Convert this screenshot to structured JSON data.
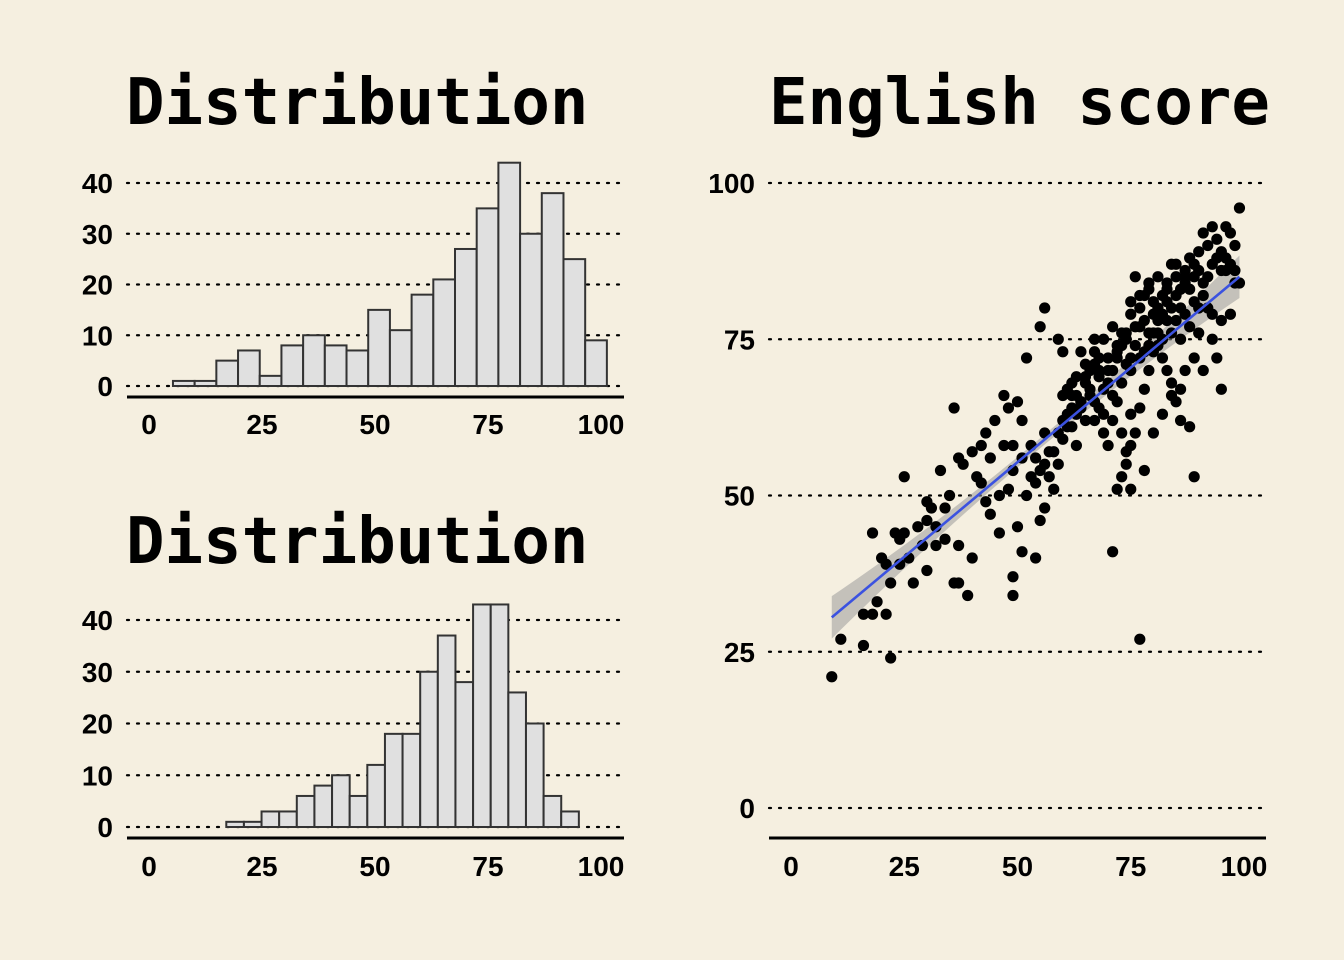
{
  "chart_data": [
    {
      "type": "bar",
      "title": "Distribution",
      "x_ticks": [
        0,
        25,
        50,
        75,
        100
      ],
      "y_ticks": [
        0,
        10,
        20,
        30,
        40
      ],
      "xlim": [
        -5,
        105
      ],
      "ylim": [
        0,
        44
      ],
      "grid": "horizontal dotted",
      "bin_width": 4.8,
      "bin_starts": [
        5.3,
        10.1,
        14.9,
        19.7,
        24.5,
        29.3,
        34.1,
        38.9,
        43.7,
        48.5,
        53.3,
        58.1,
        62.9,
        67.7,
        72.5,
        77.3,
        82.1,
        86.9,
        91.7,
        96.5
      ],
      "values": [
        1,
        1,
        5,
        7,
        2,
        8,
        10,
        8,
        7,
        15,
        11,
        18,
        21,
        27,
        35,
        44,
        30,
        38,
        25,
        9
      ]
    },
    {
      "type": "bar",
      "title": "Distribution",
      "x_ticks": [
        0,
        25,
        50,
        75,
        100
      ],
      "y_ticks": [
        0,
        10,
        20,
        30,
        40
      ],
      "xlim": [
        -5,
        105
      ],
      "ylim": [
        0,
        43
      ],
      "grid": "horizontal dotted",
      "bin_width": 3.9,
      "bin_starts": [
        17.1,
        21.0,
        24.9,
        28.8,
        32.7,
        36.6,
        40.5,
        44.4,
        48.3,
        52.2,
        56.1,
        60.0,
        63.9,
        67.8,
        71.7,
        75.6,
        79.5,
        83.4,
        87.3,
        91.2
      ],
      "values": [
        1,
        1,
        3,
        3,
        6,
        8,
        10,
        6,
        12,
        18,
        18,
        30,
        37,
        28,
        43,
        43,
        26,
        20,
        6,
        3
      ]
    },
    {
      "type": "scatter",
      "title": "English score",
      "x_ticks": [
        0,
        25,
        50,
        75,
        100
      ],
      "y_ticks": [
        0,
        25,
        50,
        75,
        100
      ],
      "xlim": [
        -5,
        105
      ],
      "ylim": [
        -5,
        100
      ],
      "grid": "horizontal dotted",
      "fit_line": {
        "x": [
          9,
          99
        ],
        "y": [
          30.5,
          85
        ]
      },
      "points": [
        [
          9,
          21
        ],
        [
          11,
          27
        ],
        [
          16,
          26
        ],
        [
          22,
          24
        ],
        [
          16,
          31
        ],
        [
          18,
          31
        ],
        [
          21,
          31
        ],
        [
          19,
          33
        ],
        [
          22,
          36
        ],
        [
          21,
          39
        ],
        [
          20,
          40
        ],
        [
          24,
          39
        ],
        [
          24,
          43
        ],
        [
          18,
          44
        ],
        [
          25,
          44
        ],
        [
          25,
          53
        ],
        [
          30,
          38
        ],
        [
          32,
          42
        ],
        [
          34,
          43
        ],
        [
          36,
          36
        ],
        [
          37,
          36
        ],
        [
          39,
          34
        ],
        [
          37,
          42
        ],
        [
          40,
          40
        ],
        [
          30,
          46
        ],
        [
          32,
          45
        ],
        [
          34,
          48
        ],
        [
          35,
          50
        ],
        [
          33,
          54
        ],
        [
          37,
          56
        ],
        [
          38,
          55
        ],
        [
          40,
          57
        ],
        [
          42,
          58
        ],
        [
          43,
          60
        ],
        [
          45,
          62
        ],
        [
          48,
          64
        ],
        [
          50,
          65
        ],
        [
          47,
          58
        ],
        [
          44,
          56
        ],
        [
          41,
          53
        ],
        [
          43,
          49
        ],
        [
          46,
          50
        ],
        [
          42,
          52
        ],
        [
          49,
          54
        ],
        [
          51,
          56
        ],
        [
          53,
          58
        ],
        [
          36,
          64
        ],
        [
          47,
          66
        ],
        [
          51,
          62
        ],
        [
          54,
          56
        ],
        [
          49,
          58
        ],
        [
          50,
          45
        ],
        [
          51,
          41
        ],
        [
          54,
          40
        ],
        [
          49,
          37
        ],
        [
          49,
          34
        ],
        [
          55,
          46
        ],
        [
          56,
          48
        ],
        [
          57,
          53
        ],
        [
          54,
          52
        ],
        [
          58,
          51
        ],
        [
          59,
          55
        ],
        [
          53,
          53
        ],
        [
          56,
          60
        ],
        [
          60,
          62
        ],
        [
          61,
          61
        ],
        [
          62,
          66
        ],
        [
          63,
          58
        ],
        [
          64,
          65
        ],
        [
          65,
          68
        ],
        [
          66,
          70
        ],
        [
          67,
          62
        ],
        [
          68,
          64
        ],
        [
          69,
          60
        ],
        [
          70,
          58
        ],
        [
          71,
          62
        ],
        [
          72,
          65
        ],
        [
          73,
          60
        ],
        [
          74,
          57
        ],
        [
          75,
          63
        ],
        [
          52,
          72
        ],
        [
          55,
          77
        ],
        [
          56,
          80
        ],
        [
          59,
          75
        ],
        [
          60,
          73
        ],
        [
          62,
          68
        ],
        [
          64,
          73
        ],
        [
          67,
          73
        ],
        [
          68,
          72
        ],
        [
          70,
          70
        ],
        [
          72,
          74
        ],
        [
          74,
          76
        ],
        [
          75,
          79
        ],
        [
          76,
          85
        ],
        [
          77,
          80
        ],
        [
          78,
          82
        ],
        [
          79,
          84
        ],
        [
          80,
          81
        ],
        [
          81,
          80
        ],
        [
          82,
          82
        ],
        [
          83,
          84
        ],
        [
          84,
          87
        ],
        [
          85,
          85
        ],
        [
          86,
          83
        ],
        [
          87,
          86
        ],
        [
          88,
          88
        ],
        [
          89,
          87
        ],
        [
          90,
          89
        ],
        [
          91,
          92
        ],
        [
          92,
          90
        ],
        [
          93,
          93
        ],
        [
          94,
          91
        ],
        [
          95,
          89
        ],
        [
          96,
          93
        ],
        [
          97,
          92
        ],
        [
          98,
          90
        ],
        [
          99,
          96
        ],
        [
          95,
          78
        ],
        [
          96,
          86
        ],
        [
          92,
          80
        ],
        [
          90,
          76
        ],
        [
          89,
          72
        ],
        [
          91,
          70
        ],
        [
          93,
          75
        ],
        [
          94,
          72
        ],
        [
          95,
          67
        ],
        [
          97,
          79
        ],
        [
          98,
          84
        ],
        [
          86,
          62
        ],
        [
          85,
          65
        ],
        [
          84,
          68
        ],
        [
          83,
          70
        ],
        [
          82,
          72
        ],
        [
          81,
          74
        ],
        [
          80,
          76
        ],
        [
          79,
          70
        ],
        [
          78,
          67
        ],
        [
          77,
          64
        ],
        [
          76,
          60
        ],
        [
          75,
          58
        ],
        [
          74,
          55
        ],
        [
          73,
          53
        ],
        [
          72,
          51
        ],
        [
          71,
          41
        ],
        [
          77,
          27
        ],
        [
          75,
          51
        ],
        [
          78,
          54
        ],
        [
          80,
          60
        ],
        [
          82,
          63
        ],
        [
          84,
          66
        ],
        [
          86,
          67
        ],
        [
          88,
          61
        ],
        [
          87,
          70
        ],
        [
          86,
          75
        ],
        [
          85,
          78
        ],
        [
          84,
          80
        ],
        [
          83,
          78
        ],
        [
          82,
          79
        ],
        [
          81,
          76
        ],
        [
          80,
          73
        ],
        [
          79,
          76
        ],
        [
          78,
          73
        ],
        [
          77,
          77
        ],
        [
          76,
          74
        ],
        [
          75,
          72
        ],
        [
          74,
          71
        ],
        [
          73,
          74
        ],
        [
          72,
          72
        ],
        [
          71,
          70
        ],
        [
          70,
          68
        ],
        [
          69,
          67
        ],
        [
          68,
          69
        ],
        [
          67,
          71
        ],
        [
          66,
          67
        ],
        [
          65,
          69
        ],
        [
          64,
          65
        ],
        [
          63,
          66
        ],
        [
          62,
          64
        ],
        [
          61,
          67
        ],
        [
          60,
          66
        ],
        [
          89,
          53
        ],
        [
          87,
          79
        ],
        [
          88,
          83
        ],
        [
          89,
          85
        ],
        [
          90,
          86
        ],
        [
          91,
          84
        ],
        [
          92,
          85
        ],
        [
          93,
          87
        ],
        [
          94,
          88
        ],
        [
          95,
          86
        ],
        [
          96,
          88
        ],
        [
          97,
          87
        ],
        [
          98,
          86
        ],
        [
          99,
          84
        ],
        [
          63,
          63
        ],
        [
          65,
          62
        ],
        [
          67,
          65
        ],
        [
          69,
          63
        ],
        [
          71,
          66
        ],
        [
          73,
          68
        ],
        [
          75,
          70
        ],
        [
          77,
          72
        ],
        [
          79,
          74
        ],
        [
          81,
          78
        ],
        [
          83,
          81
        ],
        [
          85,
          82
        ],
        [
          87,
          84
        ],
        [
          89,
          81
        ],
        [
          91,
          82
        ],
        [
          93,
          79
        ],
        [
          90,
          80
        ],
        [
          88,
          77
        ],
        [
          86,
          80
        ],
        [
          84,
          76
        ],
        [
          82,
          75
        ],
        [
          80,
          79
        ],
        [
          78,
          78
        ],
        [
          76,
          77
        ],
        [
          74,
          75
        ],
        [
          72,
          73
        ],
        [
          70,
          72
        ],
        [
          68,
          70
        ],
        [
          66,
          66
        ],
        [
          64,
          64
        ],
        [
          62,
          61
        ],
        [
          60,
          59
        ],
        [
          58,
          57
        ],
        [
          56,
          55
        ],
        [
          30,
          49
        ],
        [
          28,
          45
        ],
        [
          26,
          40
        ],
        [
          29,
          42
        ],
        [
          31,
          48
        ],
        [
          27,
          36
        ],
        [
          23,
          44
        ],
        [
          44,
          47
        ],
        [
          46,
          44
        ],
        [
          48,
          51
        ],
        [
          52,
          50
        ],
        [
          55,
          54
        ],
        [
          57,
          57
        ],
        [
          59,
          60
        ],
        [
          61,
          63
        ],
        [
          63,
          69
        ],
        [
          65,
          71
        ],
        [
          67,
          75
        ],
        [
          69,
          75
        ],
        [
          71,
          77
        ],
        [
          73,
          76
        ],
        [
          75,
          81
        ],
        [
          77,
          82
        ],
        [
          79,
          83
        ],
        [
          81,
          85
        ],
        [
          83,
          83
        ],
        [
          85,
          87
        ],
        [
          87,
          85
        ]
      ]
    }
  ]
}
